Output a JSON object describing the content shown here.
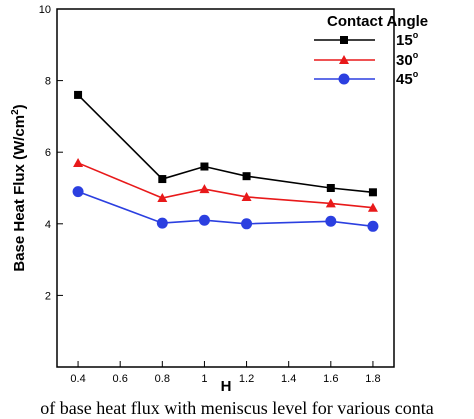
{
  "chart_data": {
    "type": "line",
    "x": [
      0.4,
      0.8,
      1.0,
      1.2,
      1.6,
      1.8
    ],
    "series": [
      {
        "name": "15",
        "color": "#000000",
        "marker": "square",
        "values": [
          7.6,
          5.25,
          5.6,
          5.33,
          5.0,
          4.88
        ]
      },
      {
        "name": "30",
        "color": "#e8191a",
        "marker": "triangle",
        "values": [
          5.7,
          4.72,
          4.97,
          4.75,
          4.57,
          4.45
        ]
      },
      {
        "name": "45",
        "color": "#2b3fe0",
        "marker": "circle",
        "values": [
          4.9,
          4.02,
          4.1,
          4.0,
          4.07,
          3.93
        ]
      }
    ],
    "xlabel": "H",
    "ylabel": "Base Heat Flux (W/cm",
    "ylabel_sup": "2",
    "ylabel_end": ")",
    "xlim": [
      0.3,
      1.9
    ],
    "ylim": [
      0,
      10
    ],
    "xticks": [
      0.4,
      0.6,
      0.8,
      1,
      1.2,
      1.4,
      1.6,
      1.8
    ],
    "yticks": [
      2,
      4,
      6,
      8,
      10
    ],
    "legend_title": "Contact Angle",
    "legend_position": "top-right",
    "degree_symbol": "o",
    "caption": "of base heat flux with meniscus level for various conta"
  }
}
